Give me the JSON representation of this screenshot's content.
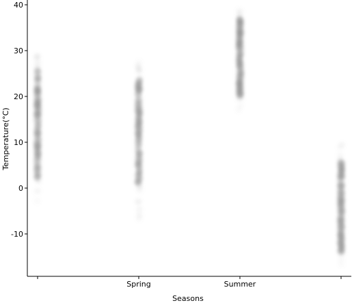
{
  "chart_data": {
    "type": "scatter",
    "xlabel": "Seasons",
    "ylabel": "Temperature(°C)",
    "categories": [
      "",
      "Spring",
      "Summer",
      ""
    ],
    "x_ticks": [
      0,
      1,
      2,
      3
    ],
    "ylim": [
      -19,
      40
    ],
    "y_ticks": [
      -10,
      0,
      10,
      20,
      30,
      40
    ],
    "grid": false,
    "marker_color": "#8c8c8c",
    "series": [
      {
        "x": 0,
        "y_min": -3,
        "y_max": 30,
        "y_core_min": 2,
        "y_core_max": 26
      },
      {
        "x": 1,
        "y_min": -7,
        "y_max": 29,
        "y_core_min": 1,
        "y_core_max": 24
      },
      {
        "x": 2,
        "y_min": 17,
        "y_max": 39,
        "y_core_min": 20,
        "y_core_max": 37
      },
      {
        "x": 3,
        "y_min": -17,
        "y_max": 10,
        "y_core_min": -14,
        "y_core_max": 6
      }
    ]
  }
}
